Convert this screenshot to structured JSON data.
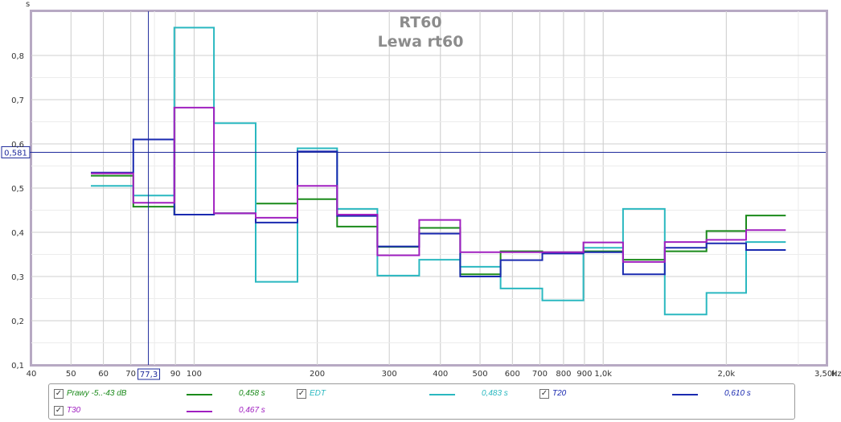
{
  "chart_data": {
    "type": "line",
    "title": "RT60",
    "subtitle": "Lewa rt60",
    "ylabel": "s",
    "xlabel": "Hz",
    "x_scale": "log",
    "xlim": [
      40,
      3500
    ],
    "ylim": [
      0.1,
      0.9
    ],
    "grid": true,
    "step_style": "steps-mid",
    "x_ticks": [
      {
        "value": 40,
        "label": "40"
      },
      {
        "value": 50,
        "label": "50"
      },
      {
        "value": 60,
        "label": "60"
      },
      {
        "value": 70,
        "label": "70"
      },
      {
        "value": 90,
        "label": "90"
      },
      {
        "value": 100,
        "label": "100"
      },
      {
        "value": 200,
        "label": "200"
      },
      {
        "value": 300,
        "label": "300"
      },
      {
        "value": 400,
        "label": "400"
      },
      {
        "value": 500,
        "label": "500"
      },
      {
        "value": 600,
        "label": "600"
      },
      {
        "value": 700,
        "label": "700"
      },
      {
        "value": 800,
        "label": "800"
      },
      {
        "value": 900,
        "label": "900"
      },
      {
        "value": 1000,
        "label": "1,0k"
      },
      {
        "value": 2000,
        "label": "2,0k"
      },
      {
        "value": 3500,
        "label": "3,50k"
      }
    ],
    "y_ticks": [
      {
        "value": 0.1,
        "label": "0,1"
      },
      {
        "value": 0.2,
        "label": "0,2"
      },
      {
        "value": 0.3,
        "label": "0,3"
      },
      {
        "value": 0.4,
        "label": "0,4"
      },
      {
        "value": 0.5,
        "label": "0,5"
      },
      {
        "value": 0.6,
        "label": "0,6"
      },
      {
        "value": 0.7,
        "label": "0,7"
      },
      {
        "value": 0.8,
        "label": "0,8"
      }
    ],
    "x": [
      63,
      80,
      100,
      125,
      160,
      200,
      250,
      315,
      400,
      500,
      630,
      800,
      1000,
      1250,
      1600,
      2000,
      2500
    ],
    "series": [
      {
        "name": "Prawy -5..-43 dB",
        "color": "#1a8a1a",
        "value_label": "0,458 s",
        "values": [
          0.528,
          0.458,
          0.44,
          0.443,
          0.465,
          0.475,
          0.413,
          0.367,
          0.41,
          0.305,
          0.357,
          0.355,
          0.357,
          0.338,
          0.357,
          0.403,
          0.438
        ]
      },
      {
        "name": "EDT",
        "color": "#2ab8c0",
        "value_label": "0,483 s",
        "values": [
          0.505,
          0.483,
          0.863,
          0.647,
          0.288,
          0.59,
          0.453,
          0.302,
          0.338,
          0.322,
          0.273,
          0.246,
          0.365,
          0.453,
          0.214,
          0.263,
          0.378
        ]
      },
      {
        "name": "T20",
        "color": "#1a2ab0",
        "value_label": "0,610 s",
        "values": [
          0.535,
          0.61,
          0.44,
          0.443,
          0.422,
          0.583,
          0.437,
          0.368,
          0.397,
          0.3,
          0.337,
          0.352,
          0.355,
          0.305,
          0.365,
          0.375,
          0.36
        ]
      },
      {
        "name": "T30",
        "color": "#a020c0",
        "value_label": "0,467 s",
        "values": [
          0.533,
          0.467,
          0.682,
          0.443,
          0.433,
          0.505,
          0.44,
          0.348,
          0.428,
          0.355,
          0.355,
          0.355,
          0.377,
          0.333,
          0.378,
          0.383,
          0.405
        ]
      }
    ],
    "cursor": {
      "x": 77.3,
      "x_label": "77,3",
      "y": 0.581,
      "y_label": "0,581",
      "color": "#1e2a9c"
    }
  }
}
